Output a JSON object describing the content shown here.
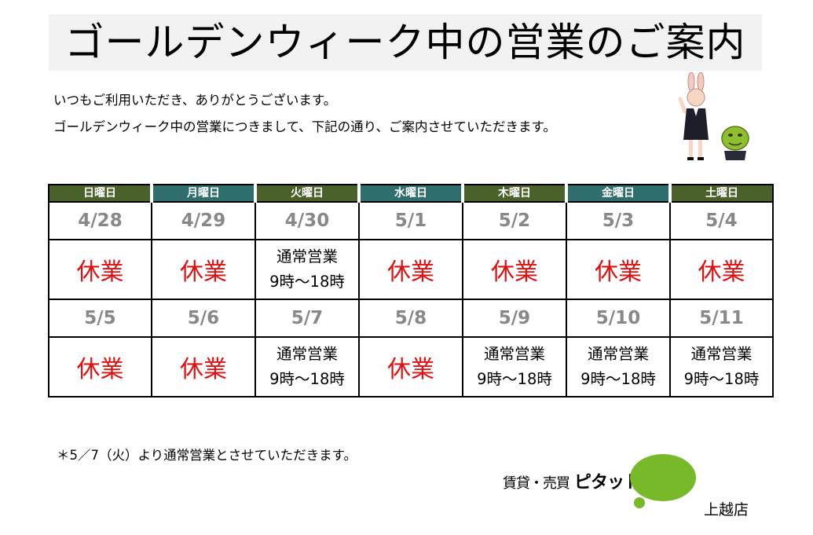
{
  "title": "ゴールデンウィーク中の営業のご案内",
  "intro": [
    "いつもご利用いただき、ありがとうございます。",
    "ゴールデンウィーク中の営業につきまして、下記の通り、ご案内させていただきます。"
  ],
  "colors": {
    "header_olive": "#4a6129",
    "header_teal": "#2f6e6c",
    "closed_red": "#e01010",
    "date_gray": "#888888",
    "logo_green": "#78b929"
  },
  "schedule": {
    "days": [
      "日曜日",
      "月曜日",
      "火曜日",
      "水曜日",
      "木曜日",
      "金曜日",
      "土曜日"
    ],
    "weeks": [
      {
        "dates": [
          "4/28",
          "4/29",
          "4/30",
          "5/1",
          "5/2",
          "5/3",
          "5/4"
        ],
        "status": [
          {
            "type": "closed",
            "label": "休業"
          },
          {
            "type": "closed",
            "label": "休業"
          },
          {
            "type": "open",
            "line1": "通常営業",
            "line2": "9時～18時"
          },
          {
            "type": "closed",
            "label": "休業"
          },
          {
            "type": "closed",
            "label": "休業"
          },
          {
            "type": "closed",
            "label": "休業"
          },
          {
            "type": "closed",
            "label": "休業"
          }
        ]
      },
      {
        "dates": [
          "5/5",
          "5/6",
          "5/7",
          "5/8",
          "5/9",
          "5/10",
          "5/11"
        ],
        "status": [
          {
            "type": "closed",
            "label": "休業"
          },
          {
            "type": "closed",
            "label": "休業"
          },
          {
            "type": "open",
            "line1": "通常営業",
            "line2": "9時～18時"
          },
          {
            "type": "closed",
            "label": "休業"
          },
          {
            "type": "open",
            "line1": "通常営業",
            "line2": "9時～18時"
          },
          {
            "type": "open",
            "line1": "通常営業",
            "line2": "9時～18時"
          },
          {
            "type": "open",
            "line1": "通常営業",
            "line2": "9時～18時"
          }
        ]
      }
    ]
  },
  "note": "＊5／7（火）より通常営業とさせていただきます。",
  "logo": {
    "prefix": "賃貸・売買",
    "name": "ピタットハウス"
  },
  "branch": "上越店",
  "icons": {
    "illustration": "bunny-mascot-with-green-character-icon",
    "logo_mark": "speech-bubble-icon"
  }
}
